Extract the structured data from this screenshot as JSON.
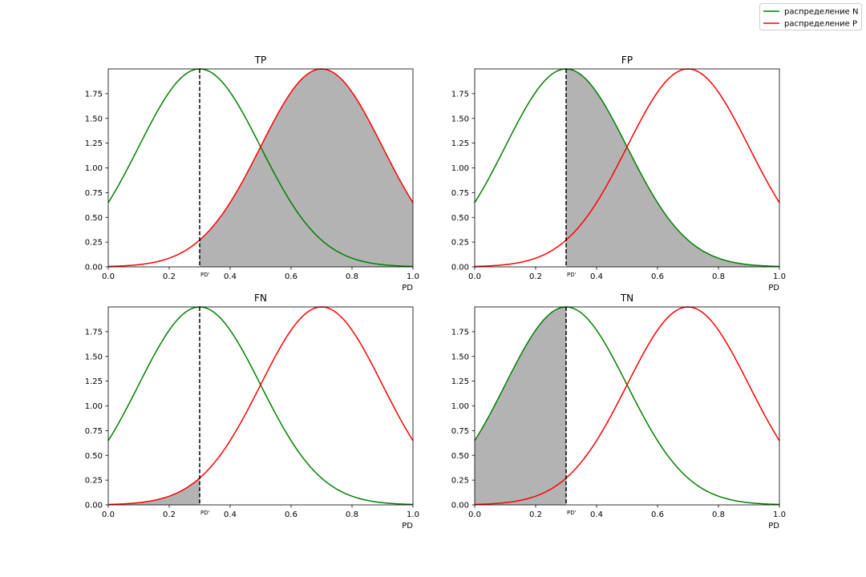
{
  "legend": {
    "placement": "upper-right",
    "entries": [
      {
        "label": "распределение N",
        "color": "#008000"
      },
      {
        "label": "распределение P",
        "color": "#ff0000"
      }
    ]
  },
  "chart_data": [
    {
      "type": "line",
      "title": "TP",
      "xlabel": "PD",
      "threshold_label": "PD'",
      "threshold": 0.3,
      "shade_series": "P",
      "shade_side": "right",
      "xlim": [
        0,
        1
      ],
      "ylim": [
        0,
        2.0
      ],
      "xticks": [
        "0.0",
        "0.2",
        "0.4",
        "0.6",
        "0.8",
        "1.0"
      ],
      "xtick_values": [
        0,
        0.2,
        0.4,
        0.6,
        0.8,
        1.0
      ],
      "yticks": [
        "0.00",
        "0.25",
        "0.50",
        "0.75",
        "1.00",
        "1.25",
        "1.50",
        "1.75"
      ],
      "ytick_values": [
        0,
        0.25,
        0.5,
        0.75,
        1.0,
        1.25,
        1.5,
        1.75
      ]
    },
    {
      "type": "line",
      "title": "FP",
      "xlabel": "PD",
      "threshold_label": "PD'",
      "threshold": 0.3,
      "shade_series": "N",
      "shade_side": "right",
      "xlim": [
        0,
        1
      ],
      "ylim": [
        0,
        2.0
      ],
      "xticks": [
        "0.0",
        "0.2",
        "0.4",
        "0.6",
        "0.8",
        "1.0"
      ],
      "xtick_values": [
        0,
        0.2,
        0.4,
        0.6,
        0.8,
        1.0
      ],
      "yticks": [
        "0.00",
        "0.25",
        "0.50",
        "0.75",
        "1.00",
        "1.25",
        "1.50",
        "1.75"
      ],
      "ytick_values": [
        0,
        0.25,
        0.5,
        0.75,
        1.0,
        1.25,
        1.5,
        1.75
      ]
    },
    {
      "type": "line",
      "title": "FN",
      "xlabel": "PD",
      "threshold_label": "PD'",
      "threshold": 0.3,
      "shade_series": "P",
      "shade_side": "left",
      "xlim": [
        0,
        1
      ],
      "ylim": [
        0,
        2.0
      ],
      "xticks": [
        "0.0",
        "0.2",
        "0.4",
        "0.6",
        "0.8",
        "1.0"
      ],
      "xtick_values": [
        0,
        0.2,
        0.4,
        0.6,
        0.8,
        1.0
      ],
      "yticks": [
        "0.00",
        "0.25",
        "0.50",
        "0.75",
        "1.00",
        "1.25",
        "1.50",
        "1.75"
      ],
      "ytick_values": [
        0,
        0.25,
        0.5,
        0.75,
        1.0,
        1.25,
        1.5,
        1.75
      ]
    },
    {
      "type": "line",
      "title": "TN",
      "xlabel": "PD",
      "threshold_label": "PD'",
      "threshold": 0.3,
      "shade_series": "N",
      "shade_side": "left",
      "xlim": [
        0,
        1
      ],
      "ylim": [
        0,
        2.0
      ],
      "xticks": [
        "0.0",
        "0.2",
        "0.4",
        "0.6",
        "0.8",
        "1.0"
      ],
      "xtick_values": [
        0,
        0.2,
        0.4,
        0.6,
        0.8,
        1.0
      ],
      "yticks": [
        "0.00",
        "0.25",
        "0.50",
        "0.75",
        "1.00",
        "1.25",
        "1.50",
        "1.75"
      ],
      "ytick_values": [
        0,
        0.25,
        0.5,
        0.75,
        1.0,
        1.25,
        1.5,
        1.75
      ]
    }
  ],
  "series": [
    {
      "key": "N",
      "color": "#008000",
      "x": [
        0,
        0.05,
        0.1,
        0.15,
        0.2,
        0.25,
        0.3,
        0.35,
        0.4,
        0.45,
        0.5,
        0.55,
        0.6,
        0.65,
        0.7,
        0.75,
        0.8,
        0.85,
        0.9,
        0.95,
        1.0
      ],
      "y": [
        0.65,
        0.89,
        1.17,
        1.46,
        1.73,
        1.94,
        2.0,
        1.94,
        1.73,
        1.46,
        1.19,
        0.91,
        0.65,
        0.44,
        0.28,
        0.17,
        0.09,
        0.05,
        0.03,
        0.01,
        0.0
      ]
    },
    {
      "key": "P",
      "color": "#ff0000",
      "x": [
        0,
        0.05,
        0.1,
        0.15,
        0.2,
        0.25,
        0.3,
        0.35,
        0.4,
        0.45,
        0.5,
        0.55,
        0.6,
        0.65,
        0.7,
        0.75,
        0.8,
        0.85,
        0.9,
        0.95,
        1.0
      ],
      "y": [
        0.0,
        0.01,
        0.03,
        0.05,
        0.09,
        0.17,
        0.28,
        0.44,
        0.65,
        0.91,
        1.19,
        1.46,
        1.73,
        1.94,
        2.0,
        1.94,
        1.73,
        1.46,
        1.17,
        0.89,
        0.65
      ]
    }
  ]
}
